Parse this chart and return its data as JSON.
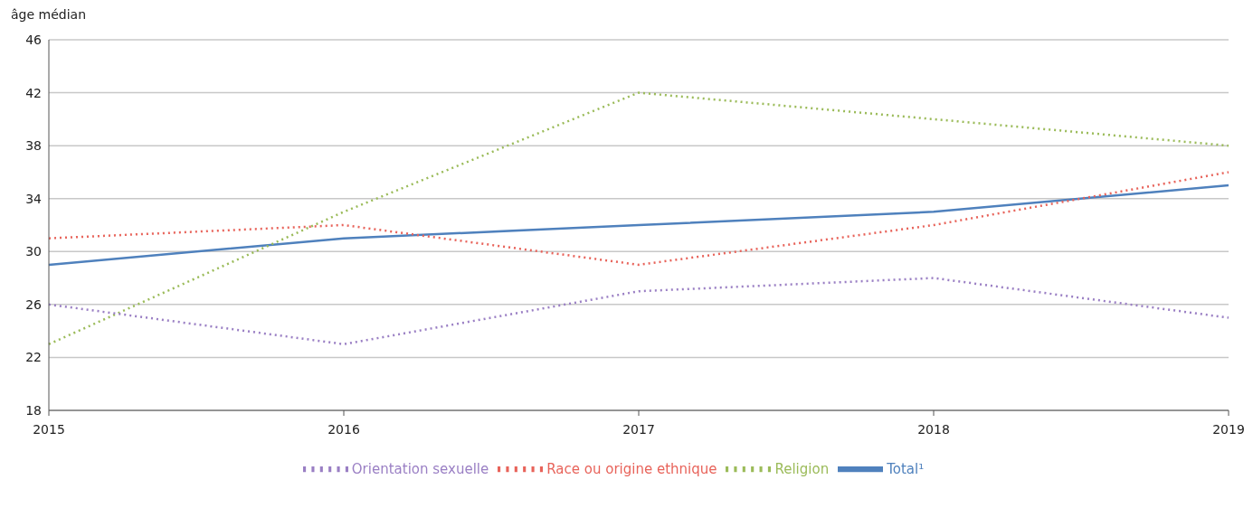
{
  "chart_data": {
    "type": "line",
    "ylabel": "âge médian",
    "categories": [
      "2015",
      "2016",
      "2017",
      "2018",
      "2019"
    ],
    "series": [
      {
        "name": "Total¹",
        "color": "#4f81bd",
        "values": [
          29,
          31,
          32,
          33,
          35
        ],
        "line_style": "solid"
      },
      {
        "name": "Race ou origine ethnique",
        "color": "#e8635a",
        "values": [
          31,
          32,
          29,
          32,
          36
        ],
        "line_style": "dotted"
      },
      {
        "name": "Religion",
        "color": "#9bbb59",
        "values": [
          23,
          33,
          42,
          40,
          38
        ],
        "line_style": "dotted"
      },
      {
        "name": "Orientation sexuelle",
        "color": "#9a7fc4",
        "values": [
          26,
          23,
          27,
          28,
          25
        ],
        "line_style": "dotted"
      }
    ],
    "ylim": [
      18,
      46
    ],
    "yticks": [
      18,
      22,
      26,
      30,
      34,
      38,
      42,
      46
    ],
    "grid": "y",
    "legend": "bottom",
    "marker": "none"
  }
}
